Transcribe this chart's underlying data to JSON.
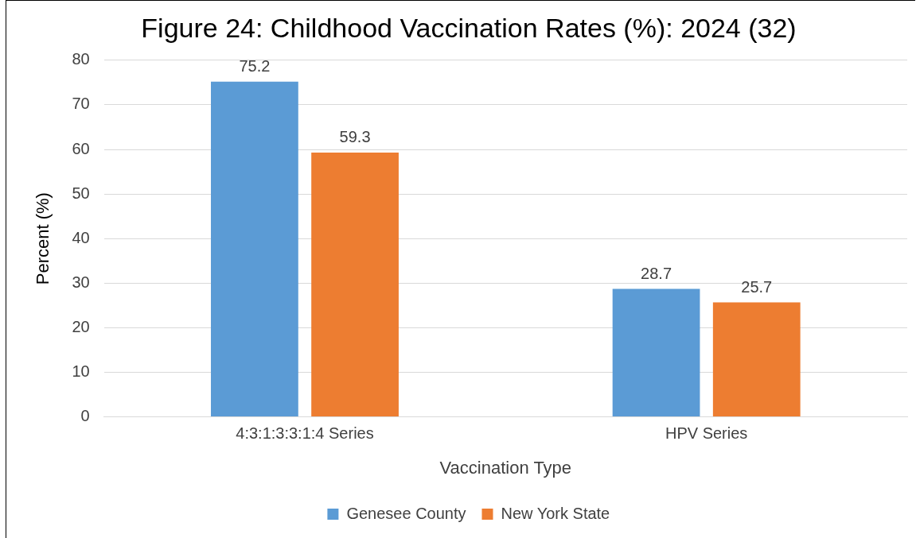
{
  "chart_data": {
    "type": "bar",
    "title": "Figure 24: Childhood Vaccination Rates (%): 2024 (32)",
    "xlabel": "Vaccination Type",
    "ylabel": "Percent (%)",
    "categories": [
      "4:3:1:3:3:1:4 Series",
      "HPV Series"
    ],
    "series": [
      {
        "name": "Genesee County",
        "color": "#5b9bd5",
        "values": [
          75.2,
          28.7
        ]
      },
      {
        "name": "New York State",
        "color": "#ed7d31",
        "values": [
          59.3,
          25.7
        ]
      }
    ],
    "ylim": [
      0,
      80
    ],
    "yticks": [
      0,
      10,
      20,
      30,
      40,
      50,
      60,
      70,
      80
    ],
    "grid": "y",
    "legend": "bottom",
    "data_labels": true
  }
}
